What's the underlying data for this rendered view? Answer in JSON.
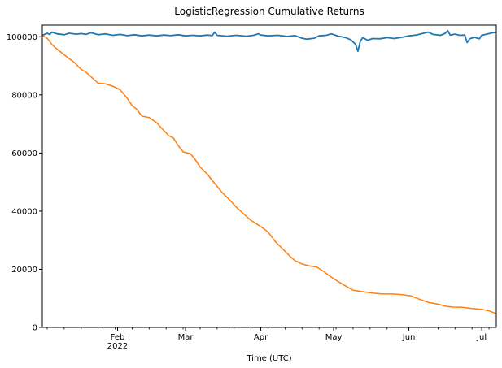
{
  "chart_data": {
    "type": "line",
    "title": "LogisticRegression Cumulative Returns",
    "xlabel": "Time (UTC)",
    "ylabel": "",
    "x_type": "date",
    "xlim": [
      "2022-01-01",
      "2022-07-07"
    ],
    "ylim": [
      0,
      104000
    ],
    "grid": false,
    "y_ticks": [
      0,
      20000,
      40000,
      60000,
      80000,
      100000
    ],
    "y_tick_labels": [
      "0",
      "20000",
      "40000",
      "60000",
      "80000",
      "100000"
    ],
    "x_major_ticks": [
      {
        "date": "2022-02-01",
        "label": "Feb",
        "sublabel": "2022"
      },
      {
        "date": "2022-03-01",
        "label": "Mar",
        "sublabel": ""
      },
      {
        "date": "2022-04-01",
        "label": "Apr",
        "sublabel": ""
      },
      {
        "date": "2022-05-01",
        "label": "May",
        "sublabel": ""
      },
      {
        "date": "2022-06-01",
        "label": "Jun",
        "sublabel": ""
      },
      {
        "date": "2022-07-01",
        "label": "Jul",
        "sublabel": ""
      }
    ],
    "x_minor_ticks": [
      "2022-01-03",
      "2022-01-10",
      "2022-01-17",
      "2022-01-24",
      "2022-01-31",
      "2022-02-07",
      "2022-02-14",
      "2022-02-21",
      "2022-02-28",
      "2022-03-07",
      "2022-03-14",
      "2022-03-21",
      "2022-03-28",
      "2022-04-04",
      "2022-04-11",
      "2022-04-18",
      "2022-04-25",
      "2022-05-02",
      "2022-05-09",
      "2022-05-16",
      "2022-05-23",
      "2022-05-30",
      "2022-06-06",
      "2022-06-13",
      "2022-06-20",
      "2022-06-27",
      "2022-07-04"
    ],
    "series": [
      {
        "color": "#1f77b4",
        "points": [
          [
            "2022-01-01",
            100500
          ],
          [
            "2022-01-03",
            101200
          ],
          [
            "2022-01-04",
            100800
          ],
          [
            "2022-01-05",
            101600
          ],
          [
            "2022-01-07",
            101000
          ],
          [
            "2022-01-10",
            100700
          ],
          [
            "2022-01-12",
            101200
          ],
          [
            "2022-01-15",
            100900
          ],
          [
            "2022-01-17",
            101100
          ],
          [
            "2022-01-19",
            100800
          ],
          [
            "2022-01-21",
            101400
          ],
          [
            "2022-01-24",
            100700
          ],
          [
            "2022-01-27",
            101000
          ],
          [
            "2022-01-30",
            100500
          ],
          [
            "2022-02-02",
            100800
          ],
          [
            "2022-02-05",
            100400
          ],
          [
            "2022-02-08",
            100700
          ],
          [
            "2022-02-11",
            100300
          ],
          [
            "2022-02-14",
            100600
          ],
          [
            "2022-02-17",
            100300
          ],
          [
            "2022-02-20",
            100600
          ],
          [
            "2022-02-23",
            100400
          ],
          [
            "2022-02-26",
            100700
          ],
          [
            "2022-03-01",
            100300
          ],
          [
            "2022-03-04",
            100500
          ],
          [
            "2022-03-07",
            100300
          ],
          [
            "2022-03-10",
            100600
          ],
          [
            "2022-03-12",
            100400
          ],
          [
            "2022-03-13",
            101600
          ],
          [
            "2022-03-14",
            100500
          ],
          [
            "2022-03-18",
            100200
          ],
          [
            "2022-03-22",
            100500
          ],
          [
            "2022-03-26",
            100200
          ],
          [
            "2022-03-29",
            100500
          ],
          [
            "2022-03-31",
            101000
          ],
          [
            "2022-04-01",
            100600
          ],
          [
            "2022-04-04",
            100300
          ],
          [
            "2022-04-08",
            100500
          ],
          [
            "2022-04-12",
            100100
          ],
          [
            "2022-04-15",
            100400
          ],
          [
            "2022-04-18",
            99500
          ],
          [
            "2022-04-20",
            99200
          ],
          [
            "2022-04-23",
            99500
          ],
          [
            "2022-04-25",
            100300
          ],
          [
            "2022-04-28",
            100500
          ],
          [
            "2022-04-30",
            101000
          ],
          [
            "2022-05-03",
            100200
          ],
          [
            "2022-05-06",
            99700
          ],
          [
            "2022-05-08",
            99000
          ],
          [
            "2022-05-10",
            97500
          ],
          [
            "2022-05-11",
            95000
          ],
          [
            "2022-05-12",
            98500
          ],
          [
            "2022-05-13",
            99700
          ],
          [
            "2022-05-15",
            98800
          ],
          [
            "2022-05-17",
            99400
          ],
          [
            "2022-05-20",
            99300
          ],
          [
            "2022-05-23",
            99700
          ],
          [
            "2022-05-26",
            99400
          ],
          [
            "2022-05-29",
            99800
          ],
          [
            "2022-06-01",
            100300
          ],
          [
            "2022-06-04",
            100600
          ],
          [
            "2022-06-07",
            101200
          ],
          [
            "2022-06-09",
            101600
          ],
          [
            "2022-06-11",
            100800
          ],
          [
            "2022-06-14",
            100500
          ],
          [
            "2022-06-16",
            101200
          ],
          [
            "2022-06-17",
            102100
          ],
          [
            "2022-06-18",
            100600
          ],
          [
            "2022-06-20",
            100900
          ],
          [
            "2022-06-22",
            100500
          ],
          [
            "2022-06-24",
            100600
          ],
          [
            "2022-06-25",
            98000
          ],
          [
            "2022-06-26",
            99300
          ],
          [
            "2022-06-28",
            99800
          ],
          [
            "2022-06-30",
            99300
          ],
          [
            "2022-07-01",
            100500
          ],
          [
            "2022-07-03",
            100900
          ],
          [
            "2022-07-05",
            101300
          ],
          [
            "2022-07-07",
            101600
          ]
        ]
      },
      {
        "color": "#ff7f0e",
        "points": [
          [
            "2022-01-01",
            100500
          ],
          [
            "2022-01-03",
            99500
          ],
          [
            "2022-01-05",
            97300
          ],
          [
            "2022-01-07",
            95800
          ],
          [
            "2022-01-10",
            93800
          ],
          [
            "2022-01-12",
            92500
          ],
          [
            "2022-01-14",
            91300
          ],
          [
            "2022-01-17",
            88800
          ],
          [
            "2022-01-19",
            87800
          ],
          [
            "2022-01-21",
            86300
          ],
          [
            "2022-01-24",
            84000
          ],
          [
            "2022-01-27",
            83800
          ],
          [
            "2022-01-30",
            83000
          ],
          [
            "2022-02-02",
            81800
          ],
          [
            "2022-02-05",
            78800
          ],
          [
            "2022-02-07",
            76300
          ],
          [
            "2022-02-09",
            75000
          ],
          [
            "2022-02-11",
            72700
          ],
          [
            "2022-02-14",
            72200
          ],
          [
            "2022-02-17",
            70500
          ],
          [
            "2022-02-20",
            67800
          ],
          [
            "2022-02-22",
            66000
          ],
          [
            "2022-02-24",
            65200
          ],
          [
            "2022-02-26",
            62500
          ],
          [
            "2022-02-28",
            60400
          ],
          [
            "2022-03-03",
            59800
          ],
          [
            "2022-03-05",
            57700
          ],
          [
            "2022-03-07",
            55200
          ],
          [
            "2022-03-10",
            52700
          ],
          [
            "2022-03-13",
            49500
          ],
          [
            "2022-03-16",
            46500
          ],
          [
            "2022-03-19",
            44000
          ],
          [
            "2022-03-22",
            41300
          ],
          [
            "2022-03-25",
            39000
          ],
          [
            "2022-03-28",
            36800
          ],
          [
            "2022-03-31",
            35200
          ],
          [
            "2022-04-02",
            34100
          ],
          [
            "2022-04-04",
            32800
          ],
          [
            "2022-04-07",
            29500
          ],
          [
            "2022-04-10",
            27000
          ],
          [
            "2022-04-13",
            24500
          ],
          [
            "2022-04-15",
            23000
          ],
          [
            "2022-04-18",
            21800
          ],
          [
            "2022-04-21",
            21200
          ],
          [
            "2022-04-24",
            20800
          ],
          [
            "2022-04-27",
            19200
          ],
          [
            "2022-04-30",
            17300
          ],
          [
            "2022-05-03",
            15700
          ],
          [
            "2022-05-06",
            14200
          ],
          [
            "2022-05-09",
            12800
          ],
          [
            "2022-05-13",
            12300
          ],
          [
            "2022-05-17",
            11800
          ],
          [
            "2022-05-21",
            11500
          ],
          [
            "2022-05-25",
            11500
          ],
          [
            "2022-05-29",
            11300
          ],
          [
            "2022-06-02",
            10800
          ],
          [
            "2022-06-05",
            9800
          ],
          [
            "2022-06-09",
            8600
          ],
          [
            "2022-06-13",
            8000
          ],
          [
            "2022-06-16",
            7300
          ],
          [
            "2022-06-19",
            7000
          ],
          [
            "2022-06-23",
            6900
          ],
          [
            "2022-06-27",
            6500
          ],
          [
            "2022-07-01",
            6200
          ],
          [
            "2022-07-04",
            5700
          ],
          [
            "2022-07-07",
            4700
          ]
        ]
      }
    ]
  }
}
